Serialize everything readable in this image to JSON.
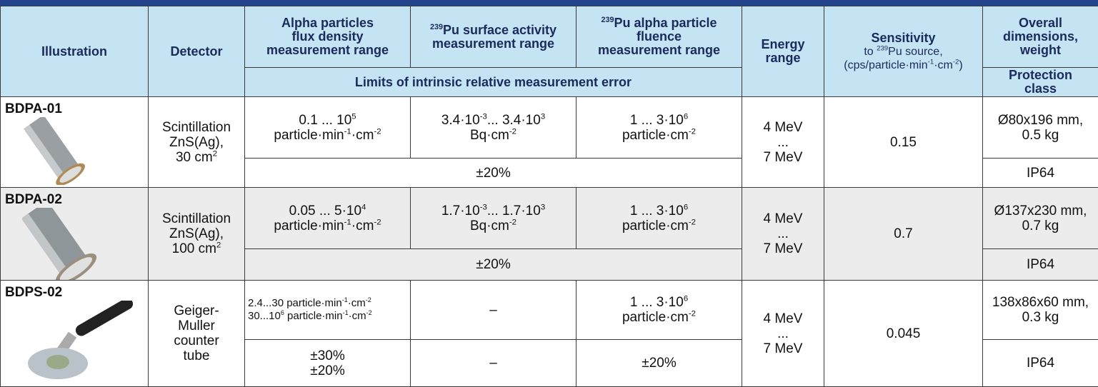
{
  "header": {
    "illustration": "Illustration",
    "detector": "Detector",
    "flux": [
      [
        "Alpha particles"
      ],
      [
        "flux density"
      ],
      [
        "measurement range"
      ]
    ],
    "surface": [
      [
        {
          "sup": "239"
        },
        "Pu surface activity"
      ],
      [
        "measurement range"
      ]
    ],
    "fluence": [
      [
        {
          "sup": "239"
        },
        "Pu alpha particle"
      ],
      [
        "fluence"
      ],
      [
        "measurement range"
      ]
    ],
    "energy": [
      [
        "Energy"
      ],
      [
        "range"
      ]
    ],
    "sensitivity": [
      [
        "Sensitivity"
      ]
    ],
    "sensitivity_unit": [
      [
        "to ",
        {
          "sup": "239"
        },
        "Pu source,"
      ],
      [
        "(cps/particle·min",
        {
          "sup": "-1"
        },
        "·cm",
        {
          "sup": "-2"
        },
        ")"
      ]
    ],
    "dimensions": [
      [
        "Overall"
      ],
      [
        "dimensions,"
      ],
      [
        "weight"
      ]
    ],
    "error": "Limits of intrinsic relative measurement error",
    "protection": [
      [
        "Protection"
      ],
      [
        "class"
      ]
    ]
  },
  "rows": [
    {
      "name": "BDPA-01",
      "detector": [
        [
          "Scintillation"
        ],
        [
          "ZnS(Ag),"
        ],
        [
          "30 cm",
          {
            "sup": "2"
          }
        ]
      ],
      "flux": [
        [
          "0.1 ... 10",
          {
            "sup": "5"
          }
        ],
        [
          "particle·min",
          {
            "sup": "-1"
          },
          "·cm",
          {
            "sup": "-2"
          }
        ]
      ],
      "surface": [
        [
          "3.4·10",
          {
            "sup": "-3"
          },
          "... 3.4·10",
          {
            "sup": "3"
          }
        ],
        [
          "Bq·cm",
          {
            "sup": "-2"
          }
        ]
      ],
      "fluence": [
        [
          "1 ... 3·10",
          {
            "sup": "6"
          }
        ],
        [
          "particle·cm",
          {
            "sup": "-2"
          }
        ]
      ],
      "energy": [
        [
          "4 MeV"
        ],
        [
          "..."
        ],
        [
          "7 MeV"
        ]
      ],
      "sensitivity": "0.15",
      "dimensions": [
        [
          "Ø80x196 mm,"
        ],
        [
          "0.5 kg"
        ]
      ],
      "errors": [
        [
          [
            "±20%"
          ]
        ]
      ],
      "protection": "IP64"
    },
    {
      "name": "BDPA-02",
      "detector": [
        [
          "Scintillation"
        ],
        [
          "ZnS(Ag),"
        ],
        [
          "100 cm",
          {
            "sup": "2"
          }
        ]
      ],
      "flux": [
        [
          "0.05 ... 5·10",
          {
            "sup": "4"
          }
        ],
        [
          "particle·min",
          {
            "sup": "-1"
          },
          "·cm",
          {
            "sup": "-2"
          }
        ]
      ],
      "surface": [
        [
          "1.7·10",
          {
            "sup": "-3"
          },
          "... 1.7·10",
          {
            "sup": "3"
          }
        ],
        [
          "Bq·cm",
          {
            "sup": "-2"
          }
        ]
      ],
      "fluence": [
        [
          "1 ... 3·10",
          {
            "sup": "6"
          }
        ],
        [
          "particle·cm",
          {
            "sup": "-2"
          }
        ]
      ],
      "energy": [
        [
          "4 MeV"
        ],
        [
          "..."
        ],
        [
          "7 MeV"
        ]
      ],
      "sensitivity": "0.7",
      "dimensions": [
        [
          "Ø137x230 mm,"
        ],
        [
          "0.7 kg"
        ]
      ],
      "errors": [
        [
          [
            "±20%"
          ]
        ]
      ],
      "protection": "IP64"
    },
    {
      "name": "BDPS-02",
      "detector": [
        [
          "Geiger-"
        ],
        [
          "Muller"
        ],
        [
          "counter"
        ],
        [
          "tube"
        ]
      ],
      "flux": [
        [
          "2.4...30 particle·min",
          {
            "sup": "-1"
          },
          "·cm",
          {
            "sup": "-2"
          }
        ],
        [
          "30...10",
          {
            "sup": "6"
          },
          " particle·min",
          {
            "sup": "-1"
          },
          "·cm",
          {
            "sup": "-2"
          }
        ]
      ],
      "surface": "–",
      "fluence": [
        [
          "1 ... 3·10",
          {
            "sup": "6"
          }
        ],
        [
          "particle·cm",
          {
            "sup": "-2"
          }
        ]
      ],
      "energy": [
        [
          "4 MeV"
        ],
        [
          "..."
        ],
        [
          "7 MeV"
        ]
      ],
      "sensitivity": "0.045",
      "dimensions": [
        [
          "138x86x60 mm,"
        ],
        [
          "0.3 kg"
        ]
      ],
      "errors": [
        [
          [
            "±30%"
          ],
          [
            "±20%"
          ]
        ],
        "–",
        [
          [
            "±20%"
          ]
        ]
      ],
      "protection": "IP64"
    }
  ]
}
